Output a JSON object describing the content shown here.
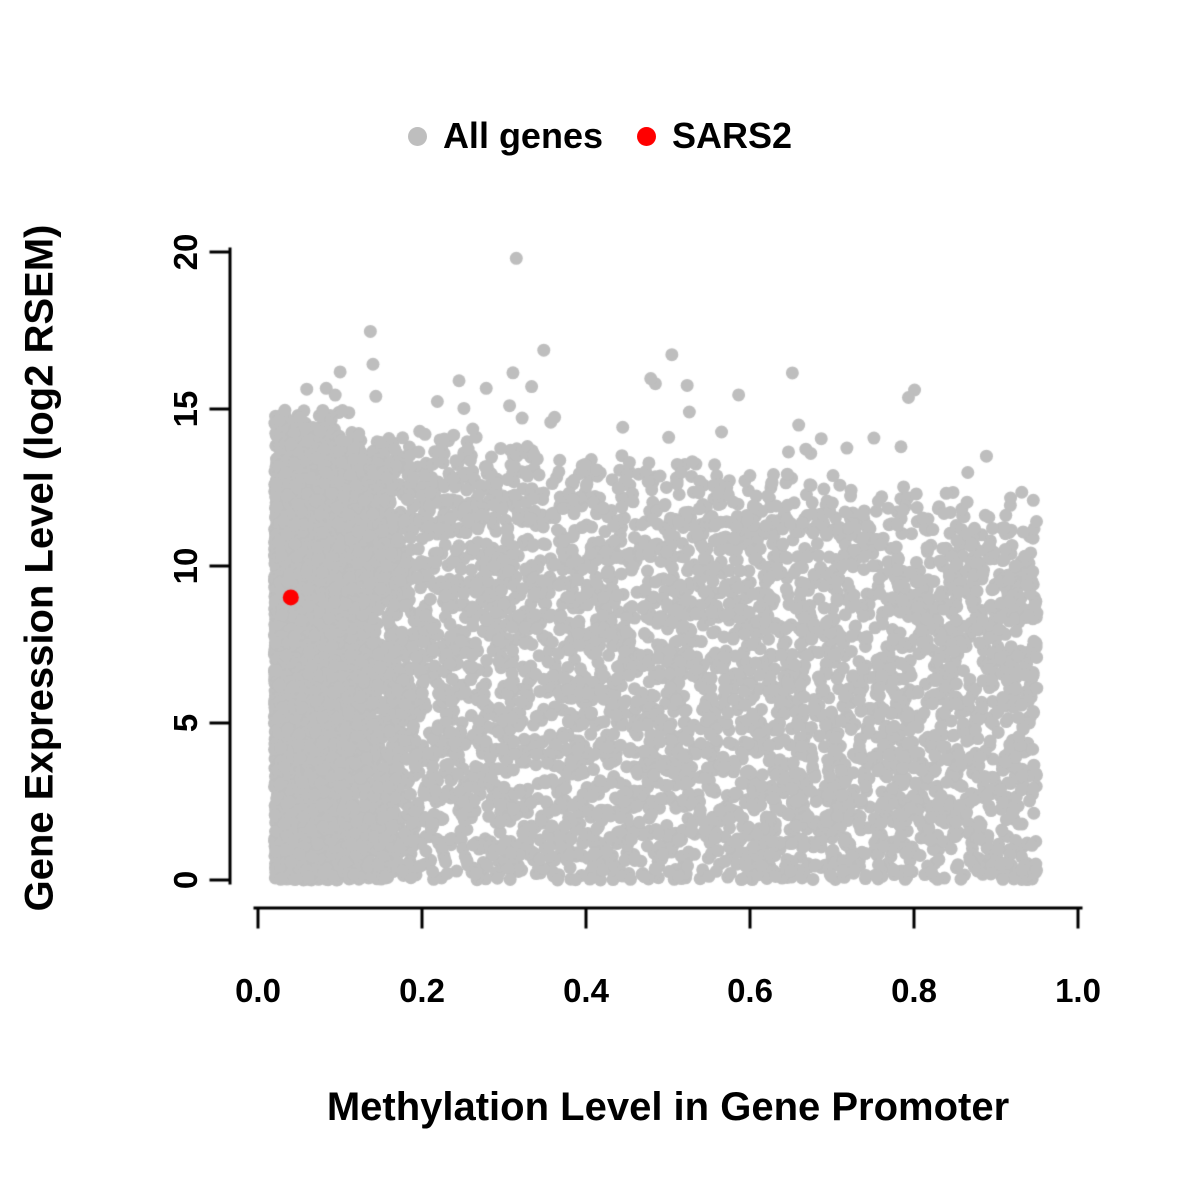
{
  "legend": {
    "items": [
      {
        "label": "All genes",
        "color": "#bebebe"
      },
      {
        "label": "SARS2",
        "color": "#ff0000"
      }
    ]
  },
  "chart_data": {
    "type": "scatter",
    "title": "",
    "xlabel": "Methylation Level in Gene Promoter",
    "ylabel": "Gene Expression Level (log2 RSEM)",
    "xlim": [
      0.0,
      1.0
    ],
    "ylim": [
      0,
      20
    ],
    "xticks": [
      "0.0",
      "0.2",
      "0.4",
      "0.6",
      "0.8",
      "1.0"
    ],
    "yticks": [
      "0",
      "5",
      "10",
      "15",
      "20"
    ],
    "grid": false,
    "legend_position": "top-center",
    "series": [
      {
        "name": "All genes",
        "color": "#bebebe",
        "marker": "filled-circle",
        "point_count_approx": 9000,
        "generator": {
          "seed": 7,
          "n": 9000,
          "x_range": [
            0.02,
            0.95
          ],
          "left_frac": 0.45,
          "left_sigma": 0.07,
          "envelope_intercept": 15.4,
          "envelope_slope": -3.2,
          "outliers": {
            "n": 40,
            "x_range": [
              0.05,
              0.9
            ],
            "above_envelope_max": 4.2,
            "y_cap": 19.3
          },
          "top_point": [
            0.315,
            19.8
          ]
        }
      },
      {
        "name": "SARS2",
        "color": "#ff0000",
        "marker": "filled-circle",
        "points": [
          [
            0.04,
            9.0
          ]
        ]
      }
    ]
  }
}
